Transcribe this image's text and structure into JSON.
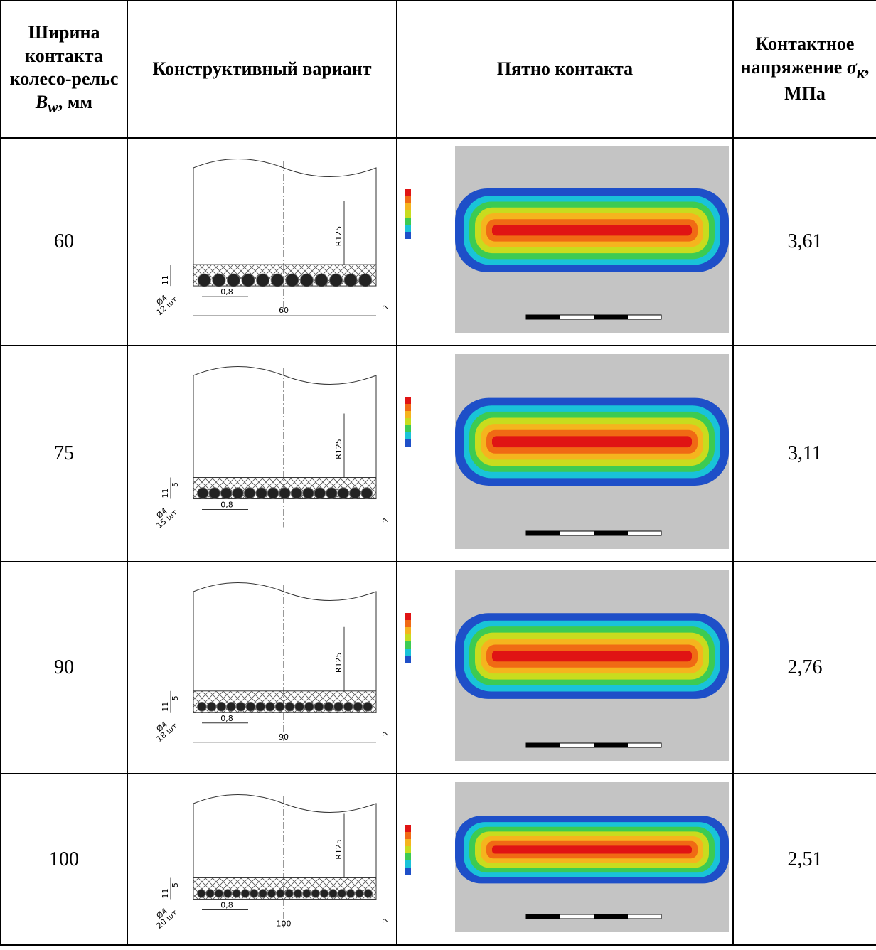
{
  "header": [
    {
      "text": "Ширина контакта колесо-рельс ",
      "symbol": "B",
      "subscript": "w",
      "unit": ", мм"
    },
    {
      "text": "Конструктивный вариант"
    },
    {
      "text": "Пятно контакта"
    },
    {
      "text": "Контактное напряжение ",
      "symbol": "σ",
      "subscript": "к",
      "unit": ", МПа"
    }
  ],
  "rows": [
    {
      "width": "60",
      "stress": "3,61",
      "drawing": {
        "radius": "R125",
        "pitch": "0,8",
        "span": "60",
        "diameter": "Ø4",
        "count": "12 шт",
        "height": "11",
        "gap": "2"
      }
    },
    {
      "width": "75",
      "stress": "3,11",
      "drawing": {
        "radius": "R125",
        "pitch": "0,8",
        "diameter": "Ø4",
        "count": "15 шт",
        "height": "11",
        "gap": "2",
        "layer": "5"
      }
    },
    {
      "width": "90",
      "stress": "2,76",
      "drawing": {
        "radius": "R125",
        "pitch": "0,8",
        "span": "90",
        "diameter": "Ø4",
        "count": "18 шт",
        "height": "11",
        "gap": "2",
        "layer": "5"
      }
    },
    {
      "width": "100",
      "stress": "2,51",
      "drawing": {
        "radius": "R125",
        "pitch": "0,8",
        "span": "100",
        "diameter": "Ø4",
        "count": "20 шт",
        "height": "11",
        "gap": "2",
        "layer": "5"
      }
    }
  ]
}
